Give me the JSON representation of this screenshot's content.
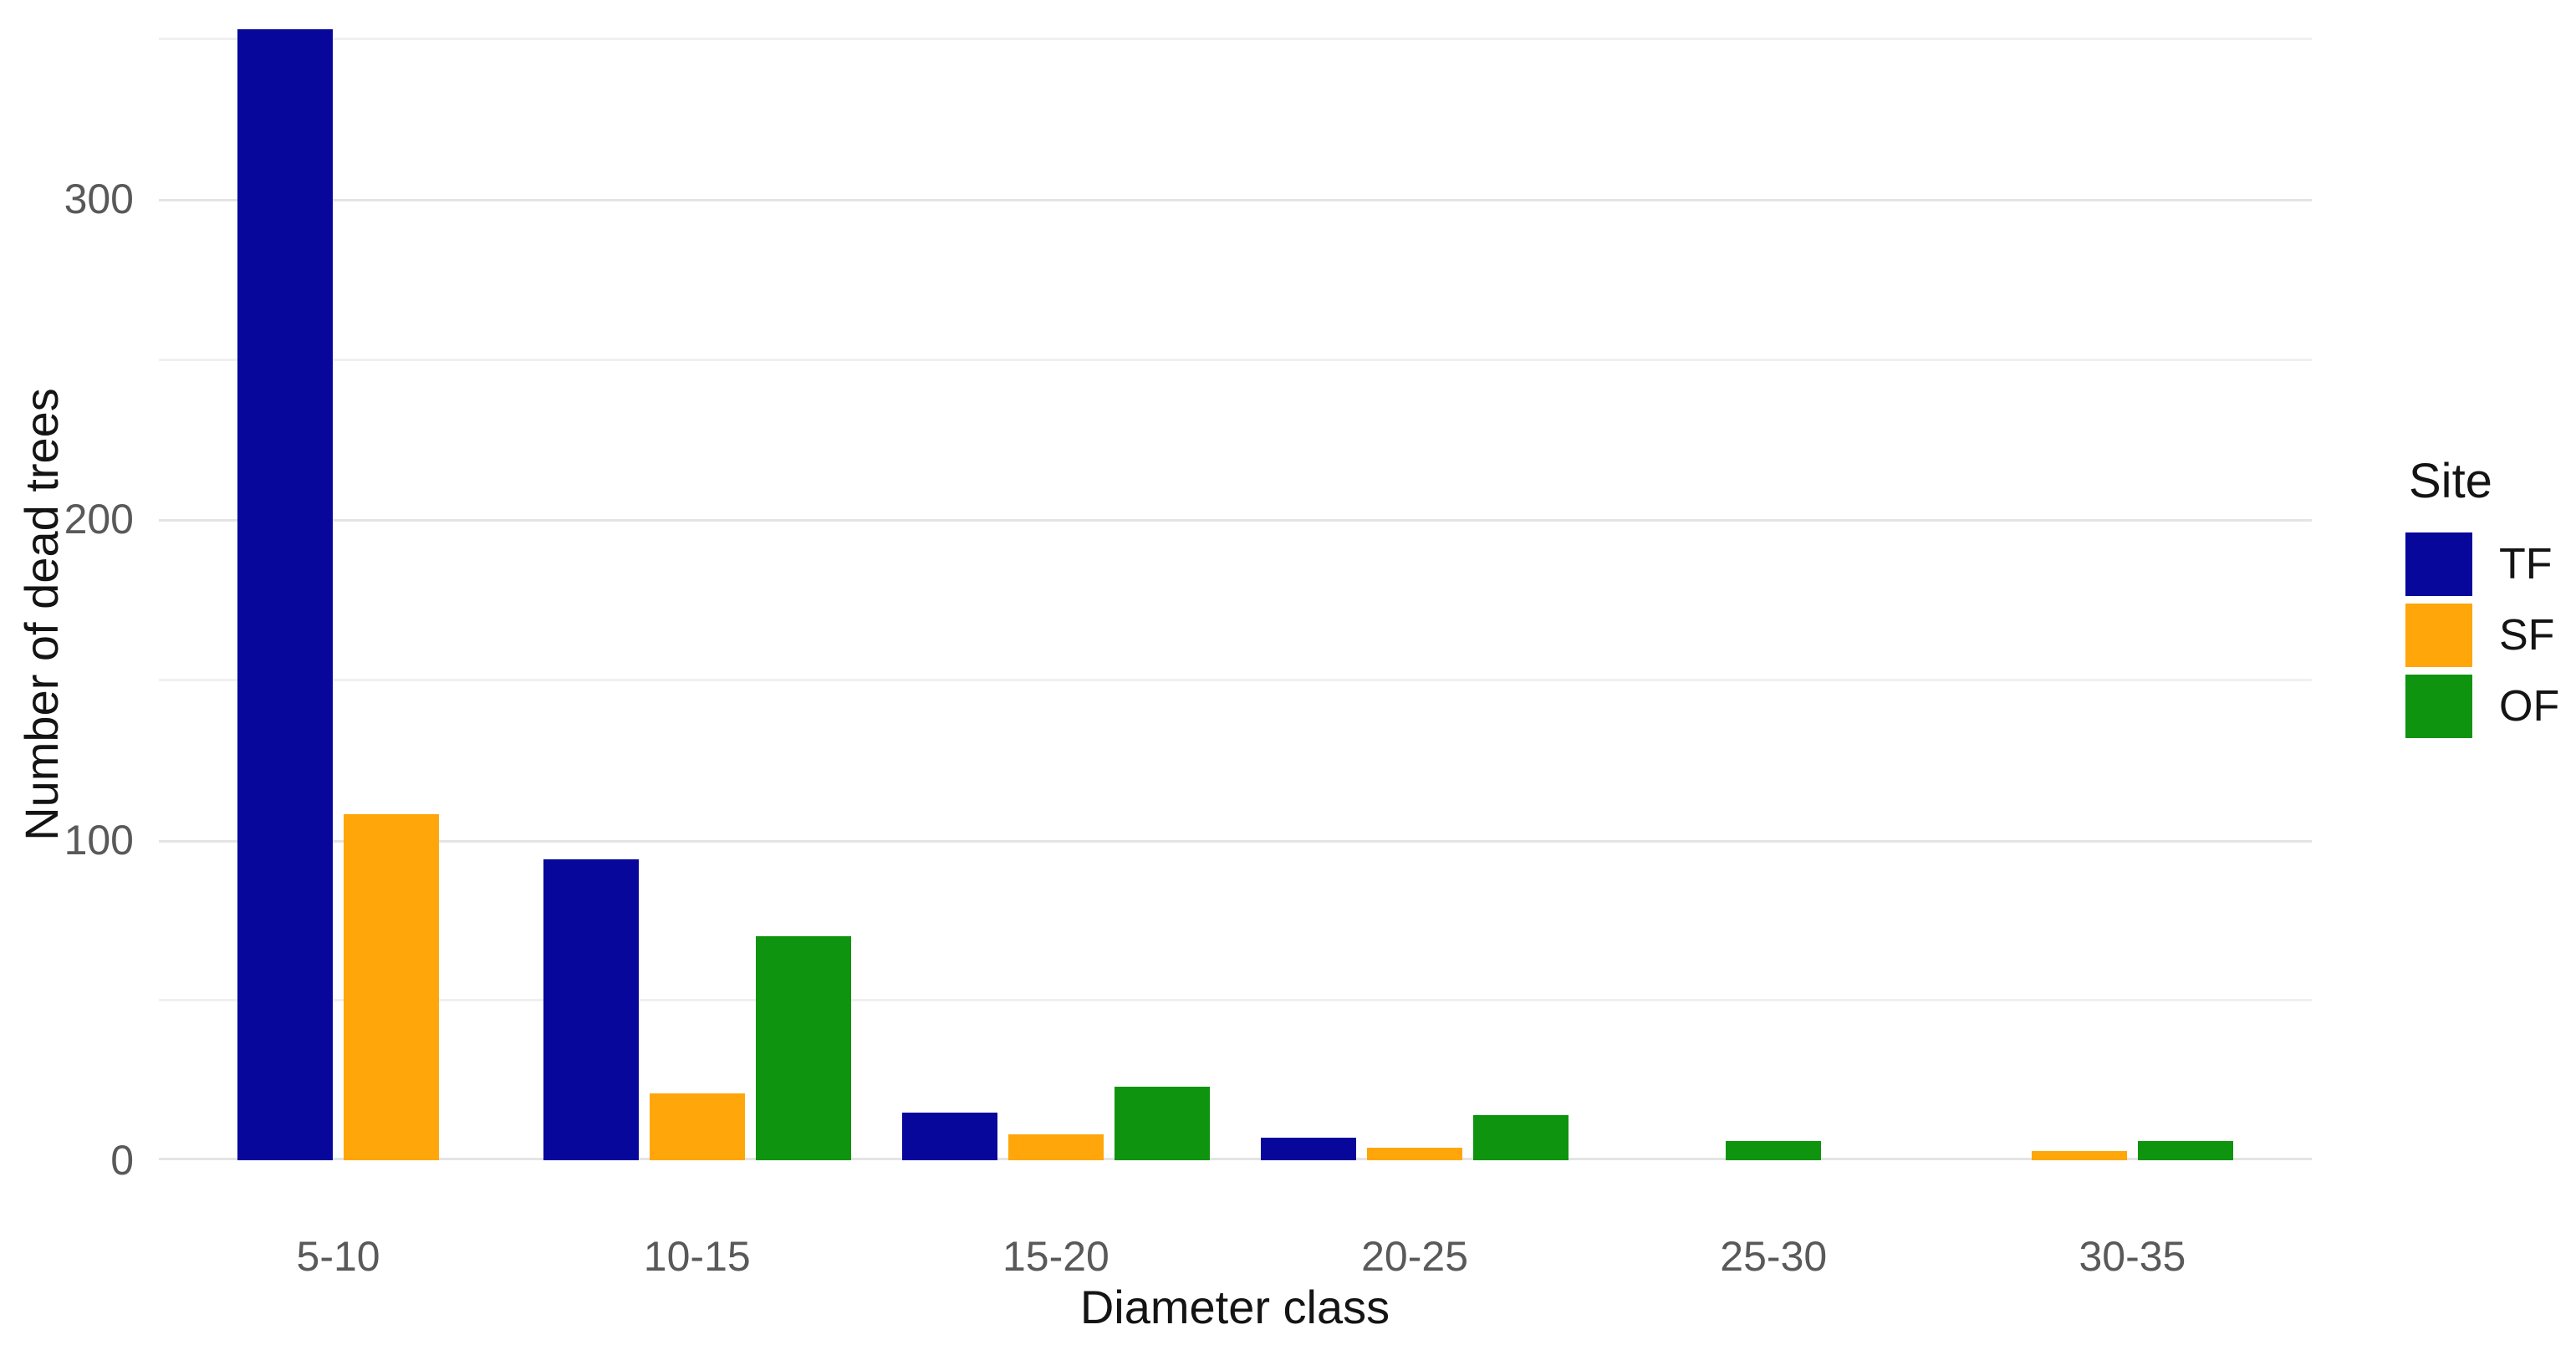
{
  "chart_data": {
    "type": "bar",
    "categories": [
      "5-10",
      "10-15",
      "15-20",
      "20-25",
      "25-30",
      "30-35"
    ],
    "series": [
      {
        "name": "TF",
        "color": "#07079B",
        "values": [
          353,
          94,
          15,
          7,
          0,
          0
        ]
      },
      {
        "name": "SF",
        "color": "#FFA60A",
        "values": [
          108,
          21,
          8,
          4,
          0,
          3
        ]
      },
      {
        "name": "OF",
        "color": "#0E940E",
        "values": [
          0,
          70,
          23,
          14,
          6,
          6
        ]
      }
    ],
    "xlabel": "Diameter class",
    "ylabel": "Number of dead trees",
    "ylim": [
      0,
      362
    ],
    "yticks": [
      0,
      100,
      200,
      300
    ],
    "yminor_gridlines": [
      50,
      150,
      250,
      350
    ],
    "grid": "horizontal light gray on white background",
    "bar_layout": "dodged; zero-value bars omitted and remaining bars centered in group",
    "legend": {
      "title": "Site",
      "position": "right",
      "entries": [
        "TF",
        "SF",
        "OF"
      ]
    }
  }
}
